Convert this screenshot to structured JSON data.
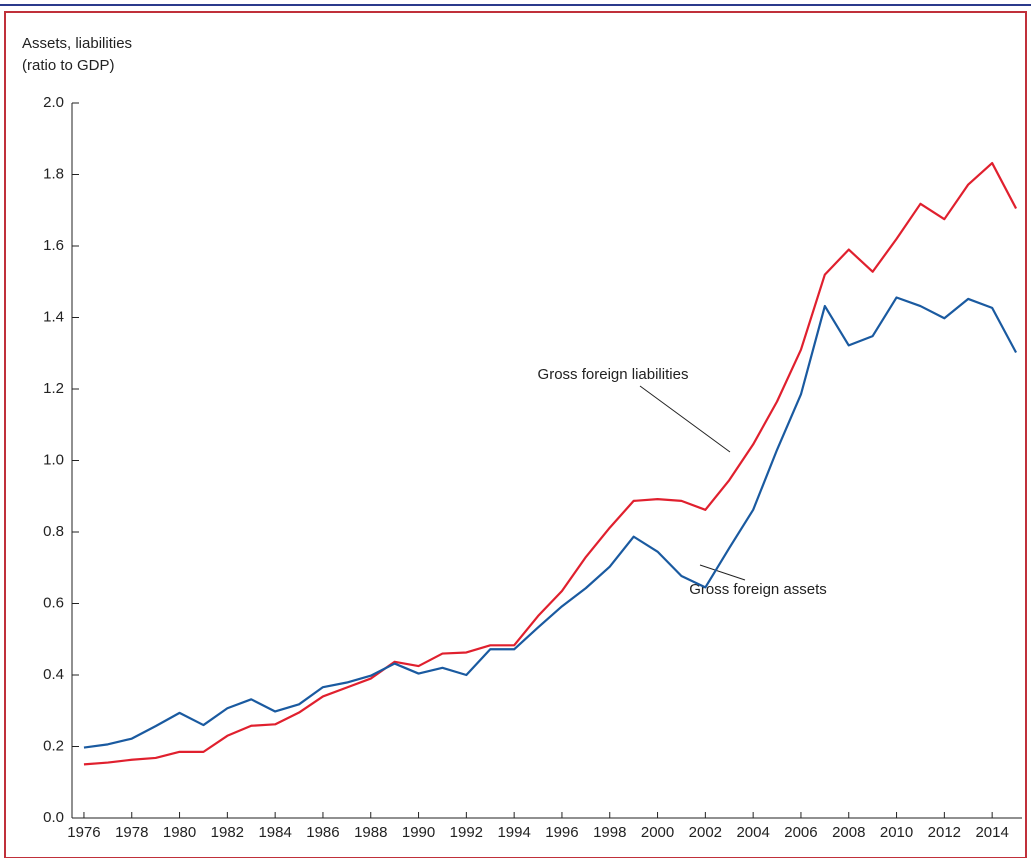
{
  "chart_data": {
    "type": "line",
    "ylabel": [
      "Assets, liabilities",
      "(ratio to GDP)"
    ],
    "x": [
      1976,
      1977,
      1978,
      1979,
      1980,
      1981,
      1982,
      1983,
      1984,
      1985,
      1986,
      1987,
      1988,
      1989,
      1990,
      1991,
      1992,
      1993,
      1994,
      1995,
      1996,
      1997,
      1998,
      1999,
      2000,
      2001,
      2002,
      2003,
      2004,
      2005,
      2006,
      2007,
      2008,
      2009,
      2010,
      2011,
      2012,
      2013,
      2014,
      2015
    ],
    "series": [
      {
        "name": "Gross foreign liabilities",
        "color": "#e0202e",
        "values": [
          0.15,
          0.155,
          0.163,
          0.168,
          0.185,
          0.185,
          0.23,
          0.258,
          0.262,
          0.295,
          0.34,
          0.365,
          0.39,
          0.437,
          0.425,
          0.46,
          0.463,
          0.483,
          0.483,
          0.565,
          0.635,
          0.73,
          0.812,
          0.887,
          0.892,
          0.887,
          0.862,
          0.945,
          1.045,
          1.165,
          1.31,
          1.52,
          1.59,
          1.528,
          1.62,
          1.718,
          1.675,
          1.772,
          1.832,
          1.705
        ]
      },
      {
        "name": "Gross foreign assets",
        "color": "#1a5aa0",
        "values": [
          0.197,
          0.206,
          0.222,
          0.257,
          0.294,
          0.26,
          0.307,
          0.332,
          0.298,
          0.318,
          0.366,
          0.379,
          0.398,
          0.432,
          0.404,
          0.42,
          0.4,
          0.472,
          0.472,
          0.533,
          0.592,
          0.643,
          0.703,
          0.787,
          0.745,
          0.677,
          0.645,
          0.755,
          0.862,
          1.03,
          1.185,
          1.432,
          1.322,
          1.348,
          1.456,
          1.432,
          1.398,
          1.452,
          1.427,
          1.302
        ]
      }
    ],
    "xlim": [
      1975.5,
      2015.5
    ],
    "xticks": [
      1976,
      1978,
      1980,
      1982,
      1984,
      1986,
      1988,
      1990,
      1992,
      1994,
      1996,
      1998,
      2000,
      2002,
      2004,
      2006,
      2008,
      2010,
      2012,
      2014
    ],
    "ylim": [
      0,
      2
    ],
    "yticks": [
      {
        "value": 0,
        "label": "0.0"
      },
      {
        "value": 0.2,
        "label": "0.2"
      },
      {
        "value": 0.4,
        "label": "0.4"
      },
      {
        "value": 0.6,
        "label": "0.6"
      },
      {
        "value": 0.8,
        "label": "0.8"
      },
      {
        "value": 1,
        "label": "1.0"
      },
      {
        "value": 1.2,
        "label": "1.2"
      },
      {
        "value": 1.4,
        "label": "1.4"
      },
      {
        "value": 1.6,
        "label": "1.6"
      },
      {
        "value": 1.8,
        "label": "1.8"
      },
      {
        "value": 2,
        "label": "2.0"
      }
    ]
  }
}
